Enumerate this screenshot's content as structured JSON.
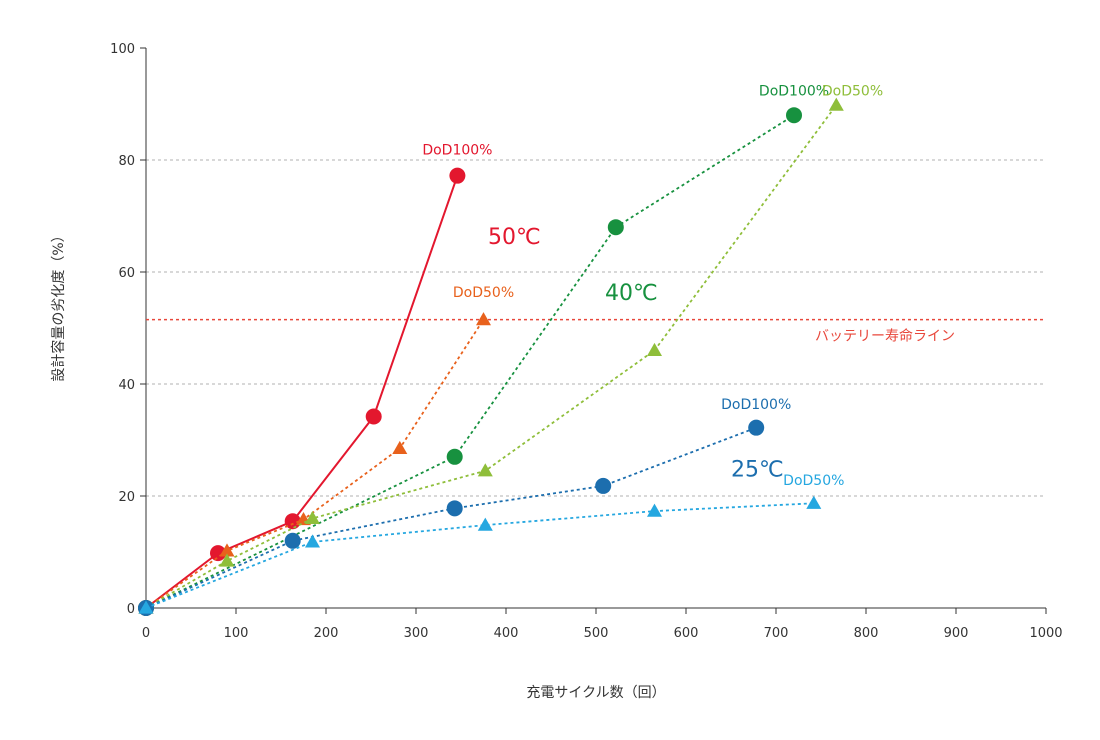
{
  "chart_data": {
    "type": "line",
    "xlabel": "充電サイクル数（回）",
    "ylabel": "設計容量の劣化度（%）",
    "xlim": [
      0,
      1000
    ],
    "ylim": [
      0,
      100
    ],
    "x_ticks": [
      "0",
      "100",
      "200",
      "300",
      "400",
      "500",
      "600",
      "700",
      "800",
      "900",
      "1000"
    ],
    "y_ticks": [
      "0",
      "20",
      "40",
      "60",
      "80",
      "100"
    ],
    "grid": "horizontal dashed at 20, 40, 60, 80",
    "reference_line": {
      "label": "バッテリー寿命ライン",
      "y": 51.5,
      "color": "#e8473b"
    },
    "temperature_labels": [
      {
        "text": "50℃",
        "color": "#e3172e",
        "x": 380,
        "y": 65
      },
      {
        "text": "40℃",
        "color": "#17913f",
        "x": 510,
        "y": 55
      },
      {
        "text": "25℃",
        "color": "#1c6eae",
        "x": 650,
        "y": 23.5
      }
    ],
    "series": [
      {
        "name": "DoD100%",
        "temperature": "50℃",
        "marker": "circle",
        "line": "solid",
        "color": "#e3172e",
        "x": [
          0,
          80,
          163,
          253,
          346
        ],
        "y": [
          0,
          9.8,
          15.5,
          34.2,
          77.2
        ],
        "label_x": 346,
        "label_y": 81
      },
      {
        "name": "DoD50%",
        "temperature": "50℃",
        "marker": "triangle",
        "line": "dashed",
        "color": "#e8611c",
        "x": [
          0,
          90,
          175,
          282,
          375
        ],
        "y": [
          0,
          10.2,
          15.8,
          28.5,
          51.5
        ],
        "label_x": 375,
        "label_y": 55.5
      },
      {
        "name": "DoD100%",
        "temperature": "40℃",
        "marker": "circle",
        "line": "dashed",
        "color": "#17913f",
        "x": [
          0,
          343,
          522,
          720
        ],
        "y": [
          0,
          27,
          68,
          88
        ],
        "label_x": 720,
        "label_y": 91.5
      },
      {
        "name": "DoD50%",
        "temperature": "40℃",
        "marker": "triangle",
        "line": "dashed",
        "color": "#8fbe3a",
        "x": [
          0,
          90,
          185,
          377,
          565,
          767
        ],
        "y": [
          0,
          8.4,
          16,
          24.5,
          46,
          89.8
        ],
        "label_x": 785,
        "label_y": 91.5
      },
      {
        "name": "DoD100%",
        "temperature": "25℃",
        "marker": "circle",
        "line": "dashed",
        "color": "#1c6eae",
        "x": [
          0,
          163,
          343,
          508,
          678
        ],
        "y": [
          0,
          12,
          17.8,
          21.8,
          32.2
        ],
        "label_x": 678,
        "label_y": 35.5
      },
      {
        "name": "DoD50%",
        "temperature": "25℃",
        "marker": "triangle",
        "line": "dashed",
        "color": "#25a7e0",
        "x": [
          0,
          185,
          377,
          565,
          742
        ],
        "y": [
          0,
          11.8,
          14.8,
          17.3,
          18.7
        ],
        "label_x": 742,
        "label_y": 22
      }
    ]
  }
}
